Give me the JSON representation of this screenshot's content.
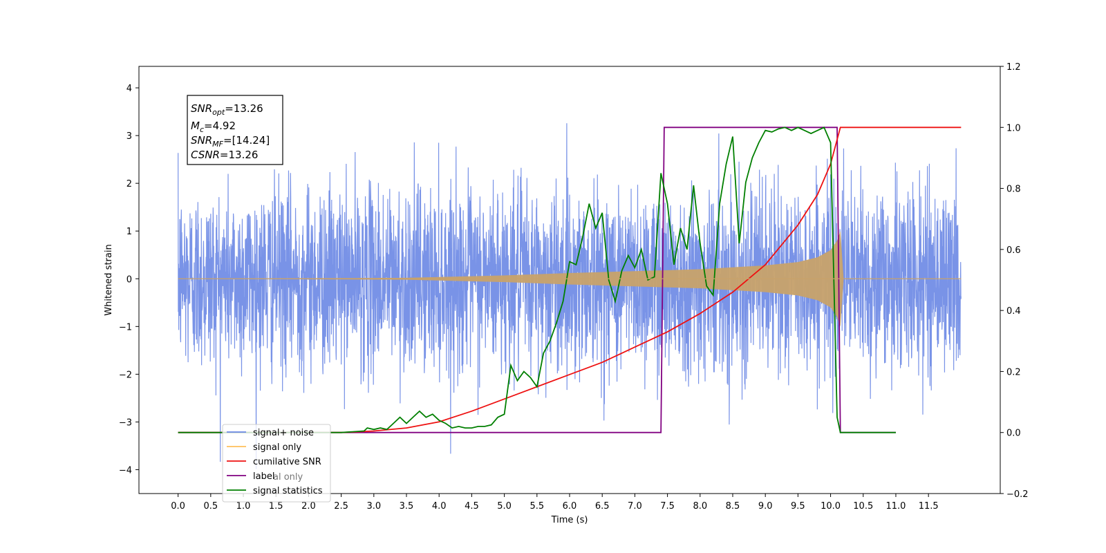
{
  "chart_data": {
    "type": "line",
    "xlabel": "Time (s)",
    "ylabel": "Whitened strain",
    "xlim": [
      -0.6,
      12.6
    ],
    "ylim": [
      -4.5,
      4.45
    ],
    "y2lim": [
      -0.2,
      1.2
    ],
    "xticks": [
      "0.0",
      "0.5",
      "1.0",
      "1.5",
      "2.0",
      "2.5",
      "3.0",
      "3.5",
      "4.0",
      "4.5",
      "5.0",
      "5.5",
      "6.0",
      "6.5",
      "7.0",
      "7.5",
      "8.0",
      "8.5",
      "9.0",
      "9.5",
      "10.0",
      "10.5",
      "11.0",
      "11.5"
    ],
    "yticks": [
      "4",
      "3",
      "2",
      "1",
      "0",
      "−1",
      "−2",
      "−3",
      "−4"
    ],
    "y2ticks": [
      "1.2",
      "1.0",
      "0.8",
      "0.6",
      "0.4",
      "0.2",
      "0.0",
      "−0.2"
    ],
    "annotation": {
      "snr_opt_label": "SNR",
      "snr_opt_sub": "opt",
      "snr_opt_value": "=13.26",
      "mc_label": "M",
      "mc_sub": "c",
      "mc_value": "=4.92",
      "snr_mf_label": "SNR",
      "snr_mf_sub": "MF",
      "snr_mf_value": "=[14.24]",
      "csnr_label": "CSNR",
      "csnr_value": "=13.26"
    },
    "legend": {
      "placement": "lower-left",
      "entries": [
        "signal+ noise",
        "signal only",
        "cumilative SNR",
        "label",
        "signal statistics"
      ],
      "overlap_text": "al only"
    },
    "colors": {
      "noise": "#6a87e4",
      "signal": "#c8a26a",
      "signal_legend": "#ffbf5a",
      "cumulative_snr": "#ee1111",
      "label": "#800080",
      "statistics": "#007f00"
    },
    "series": [
      {
        "name": "signal+ noise",
        "axis": "left",
        "description": "noise envelope",
        "x_range": [
          0.0,
          12.0
        ],
        "noise_amplitude": 1.6
      },
      {
        "name": "signal only",
        "axis": "left",
        "x_range": [
          0.0,
          10.15
        ],
        "envelope": [
          [
            0.0,
            0.0
          ],
          [
            3.5,
            0.02
          ],
          [
            5.0,
            0.07
          ],
          [
            6.0,
            0.12
          ],
          [
            7.0,
            0.16
          ],
          [
            8.0,
            0.2
          ],
          [
            9.0,
            0.28
          ],
          [
            9.5,
            0.35
          ],
          [
            9.8,
            0.45
          ],
          [
            10.0,
            0.6
          ],
          [
            10.1,
            0.8
          ],
          [
            10.15,
            1.0
          ],
          [
            10.2,
            0.0
          ],
          [
            12.0,
            0.0
          ]
        ]
      },
      {
        "name": "cumilative SNR",
        "axis": "right",
        "x": [
          0.0,
          2.5,
          3.0,
          3.5,
          4.0,
          4.5,
          5.0,
          5.5,
          6.0,
          6.5,
          7.0,
          7.5,
          8.0,
          8.5,
          9.0,
          9.5,
          9.8,
          10.0,
          10.1,
          10.15,
          12.0
        ],
        "values": [
          0.0,
          0.0,
          0.005,
          0.015,
          0.035,
          0.07,
          0.11,
          0.15,
          0.19,
          0.23,
          0.28,
          0.33,
          0.39,
          0.46,
          0.55,
          0.68,
          0.78,
          0.88,
          0.96,
          1.0,
          1.0
        ]
      },
      {
        "name": "label",
        "axis": "right",
        "x": [
          0.0,
          7.4,
          7.45,
          10.1,
          10.15,
          11.0
        ],
        "values": [
          0.0,
          0.0,
          1.0,
          1.0,
          0.0,
          0.0
        ]
      },
      {
        "name": "signal statistics",
        "axis": "right",
        "x": [
          0.0,
          2.5,
          2.85,
          2.9,
          3.0,
          3.1,
          3.2,
          3.3,
          3.4,
          3.5,
          3.6,
          3.7,
          3.8,
          3.9,
          4.0,
          4.1,
          4.2,
          4.3,
          4.4,
          4.5,
          4.6,
          4.7,
          4.8,
          4.9,
          5.0,
          5.1,
          5.2,
          5.3,
          5.4,
          5.5,
          5.6,
          5.7,
          5.8,
          5.9,
          6.0,
          6.1,
          6.2,
          6.3,
          6.4,
          6.5,
          6.6,
          6.7,
          6.8,
          6.9,
          7.0,
          7.1,
          7.2,
          7.3,
          7.4,
          7.5,
          7.6,
          7.7,
          7.8,
          7.9,
          8.0,
          8.1,
          8.2,
          8.3,
          8.4,
          8.5,
          8.6,
          8.7,
          8.8,
          8.9,
          9.0,
          9.1,
          9.2,
          9.3,
          9.4,
          9.5,
          9.6,
          9.7,
          9.8,
          9.9,
          10.0,
          10.1,
          10.15,
          10.2,
          10.3,
          10.5,
          11.0,
          11.0
        ],
        "values": [
          0.0,
          0.0,
          0.005,
          0.015,
          0.01,
          0.015,
          0.01,
          0.03,
          0.05,
          0.03,
          0.05,
          0.07,
          0.05,
          0.06,
          0.04,
          0.03,
          0.015,
          0.02,
          0.015,
          0.015,
          0.02,
          0.02,
          0.025,
          0.05,
          0.06,
          0.22,
          0.17,
          0.2,
          0.18,
          0.15,
          0.26,
          0.3,
          0.36,
          0.43,
          0.56,
          0.55,
          0.64,
          0.75,
          0.67,
          0.72,
          0.5,
          0.43,
          0.53,
          0.58,
          0.54,
          0.6,
          0.5,
          0.51,
          0.85,
          0.75,
          0.55,
          0.67,
          0.6,
          0.81,
          0.62,
          0.48,
          0.45,
          0.75,
          0.88,
          0.97,
          0.62,
          0.82,
          0.9,
          0.95,
          0.99,
          0.985,
          0.995,
          1.0,
          0.99,
          1.0,
          0.99,
          0.98,
          0.99,
          1.0,
          0.95,
          0.05,
          0.0,
          0.0,
          0.0,
          0.0,
          0.0,
          0.0
        ]
      }
    ]
  }
}
